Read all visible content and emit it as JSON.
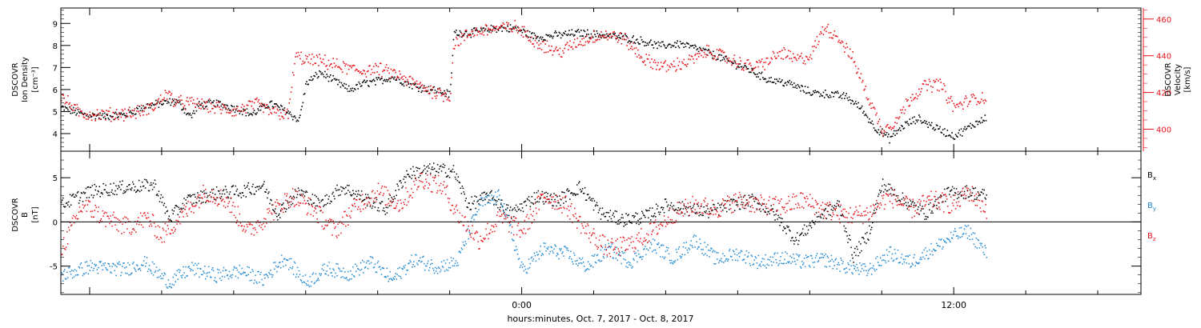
{
  "colors": {
    "density": "#000000",
    "velocity": "#e8141c",
    "bx": "#000000",
    "by": "#1e88d0",
    "bz": "#e8141c"
  },
  "chart_data": [
    {
      "type": "scatter",
      "ylabel_left": [
        "DSCOVR",
        "Ion Density",
        "[cm⁻³]"
      ],
      "ylabel_right": [
        "DSCOVR",
        "Velocity",
        "[km/s]"
      ],
      "ylim_left": [
        3.2,
        9.7
      ],
      "ylim_right": [
        388,
        466
      ],
      "yticks_left": [
        "4",
        "5",
        "6",
        "7",
        "8",
        "9"
      ],
      "yticks_right": [
        "400",
        "420",
        "440",
        "460"
      ],
      "x_range_hours": [
        -12.8,
        17.2
      ],
      "x_data_range_hours": [
        -12.8,
        12.9
      ],
      "series": [
        {
          "key": "density",
          "axis": "left",
          "knots": [
            [
              -12.8,
              5.2
            ],
            [
              -12.2,
              4.9
            ],
            [
              -11.6,
              4.8
            ],
            [
              -11.0,
              4.9
            ],
            [
              -10.4,
              5.3
            ],
            [
              -9.6,
              5.5
            ],
            [
              -9.2,
              4.8
            ],
            [
              -9.0,
              5.3
            ],
            [
              -8.5,
              5.4
            ],
            [
              -8.0,
              5.2
            ],
            [
              -7.5,
              4.9
            ],
            [
              -7.0,
              5.4
            ],
            [
              -6.5,
              5.0
            ],
            [
              -6.2,
              4.6
            ],
            [
              -6.0,
              6.3
            ],
            [
              -5.6,
              6.8
            ],
            [
              -5.2,
              6.4
            ],
            [
              -4.8,
              6.0
            ],
            [
              -4.4,
              6.3
            ],
            [
              -4.0,
              6.4
            ],
            [
              -3.6,
              6.6
            ],
            [
              -3.2,
              6.3
            ],
            [
              -2.8,
              6.1
            ],
            [
              -2.4,
              6.0
            ],
            [
              -2.0,
              5.8
            ],
            [
              -1.9,
              8.6
            ],
            [
              -1.4,
              8.6
            ],
            [
              -0.8,
              8.8
            ],
            [
              -0.2,
              8.8
            ],
            [
              0.4,
              8.4
            ],
            [
              1.0,
              8.5
            ],
            [
              1.6,
              8.6
            ],
            [
              2.2,
              8.5
            ],
            [
              2.8,
              8.4
            ],
            [
              3.4,
              8.2
            ],
            [
              3.8,
              8.0
            ],
            [
              4.4,
              8.1
            ],
            [
              5.0,
              7.8
            ],
            [
              5.6,
              7.4
            ],
            [
              6.2,
              7.0
            ],
            [
              6.8,
              6.5
            ],
            [
              7.4,
              6.3
            ],
            [
              8.0,
              5.9
            ],
            [
              8.6,
              5.8
            ],
            [
              9.0,
              5.7
            ],
            [
              9.4,
              5.2
            ],
            [
              9.8,
              4.3
            ],
            [
              10.2,
              3.8
            ],
            [
              10.6,
              4.4
            ],
            [
              11.0,
              4.7
            ],
            [
              11.6,
              4.2
            ],
            [
              12.0,
              3.9
            ],
            [
              12.4,
              4.3
            ],
            [
              12.9,
              4.8
            ]
          ],
          "noise": 0.16
        },
        {
          "key": "velocity",
          "axis": "right",
          "knots": [
            [
              -12.8,
              418
            ],
            [
              -12.3,
              409
            ],
            [
              -11.7,
              408
            ],
            [
              -11.0,
              409
            ],
            [
              -10.5,
              410
            ],
            [
              -10.2,
              413
            ],
            [
              -9.9,
              420
            ],
            [
              -9.6,
              415
            ],
            [
              -9.0,
              414
            ],
            [
              -8.5,
              412
            ],
            [
              -8.0,
              410
            ],
            [
              -7.4,
              414
            ],
            [
              -7.0,
              410
            ],
            [
              -6.5,
              408
            ],
            [
              -6.3,
              440
            ],
            [
              -6.0,
              438
            ],
            [
              -5.5,
              437
            ],
            [
              -5.0,
              434
            ],
            [
              -4.5,
              432
            ],
            [
              -4.0,
              433
            ],
            [
              -3.5,
              430
            ],
            [
              -3.0,
              425
            ],
            [
              -2.5,
              421
            ],
            [
              -2.0,
              418
            ],
            [
              -1.9,
              447
            ],
            [
              -1.4,
              453
            ],
            [
              -0.8,
              455
            ],
            [
              -0.2,
              456
            ],
            [
              0.4,
              448
            ],
            [
              1.0,
              442
            ],
            [
              1.6,
              448
            ],
            [
              2.2,
              452
            ],
            [
              2.8,
              450
            ],
            [
              3.4,
              438
            ],
            [
              4.0,
              434
            ],
            [
              4.6,
              437
            ],
            [
              5.2,
              443
            ],
            [
              5.8,
              438
            ],
            [
              6.4,
              434
            ],
            [
              6.8,
              437
            ],
            [
              7.2,
              442
            ],
            [
              7.6,
              438
            ],
            [
              8.0,
              440
            ],
            [
              8.4,
              456
            ],
            [
              8.8,
              450
            ],
            [
              9.2,
              438
            ],
            [
              9.6,
              418
            ],
            [
              10.0,
              400
            ],
            [
              10.4,
              405
            ],
            [
              10.8,
              418
            ],
            [
              11.2,
              424
            ],
            [
              11.6,
              425
            ],
            [
              12.0,
              412
            ],
            [
              12.4,
              416
            ],
            [
              12.9,
              418
            ]
          ],
          "noise": 3.2
        }
      ]
    },
    {
      "type": "scatter",
      "ylabel_left": [
        "DSCOVR",
        "B",
        "[nT]"
      ],
      "ylim": [
        -8.2,
        8.0
      ],
      "yticks_left": [
        "-5",
        "0",
        "5"
      ],
      "legend": [
        {
          "key": "bx",
          "label": "B",
          "sub": "x"
        },
        {
          "key": "by",
          "label": "B",
          "sub": "y"
        },
        {
          "key": "bz",
          "label": "B",
          "sub": "z"
        }
      ],
      "x_range_hours": [
        -12.8,
        17.2
      ],
      "x_data_range_hours": [
        -12.8,
        12.9
      ],
      "series": [
        {
          "key": "bx",
          "knots": [
            [
              -12.8,
              2.0
            ],
            [
              -12.0,
              3.5
            ],
            [
              -11.0,
              4.0
            ],
            [
              -10.2,
              4.2
            ],
            [
              -9.8,
              0.5
            ],
            [
              -9.3,
              2.5
            ],
            [
              -8.5,
              3.3
            ],
            [
              -7.8,
              3.5
            ],
            [
              -7.2,
              4.2
            ],
            [
              -6.8,
              1.0
            ],
            [
              -6.2,
              3.5
            ],
            [
              -5.6,
              2.0
            ],
            [
              -5.0,
              4.0
            ],
            [
              -4.5,
              3.0
            ],
            [
              -3.8,
              1.5
            ],
            [
              -3.2,
              5.5
            ],
            [
              -2.5,
              6.0
            ],
            [
              -1.9,
              5.8
            ],
            [
              -1.5,
              2.0
            ],
            [
              -0.9,
              3.0
            ],
            [
              -0.3,
              1.0
            ],
            [
              0.4,
              3.0
            ],
            [
              1.0,
              2.5
            ],
            [
              1.6,
              4.0
            ],
            [
              2.2,
              1.0
            ],
            [
              2.8,
              0.3
            ],
            [
              3.4,
              0.6
            ],
            [
              4.0,
              2.0
            ],
            [
              4.6,
              1.5
            ],
            [
              5.2,
              1.2
            ],
            [
              5.8,
              2.0
            ],
            [
              6.4,
              2.5
            ],
            [
              7.0,
              1.0
            ],
            [
              7.6,
              -2.0
            ],
            [
              8.2,
              0.5
            ],
            [
              8.8,
              2.0
            ],
            [
              9.2,
              -3.8
            ],
            [
              9.6,
              -1.5
            ],
            [
              10.0,
              4.3
            ],
            [
              10.6,
              2.5
            ],
            [
              11.2,
              1.0
            ],
            [
              11.8,
              3.3
            ],
            [
              12.4,
              3.5
            ],
            [
              12.9,
              3.0
            ]
          ],
          "noise": 0.75
        },
        {
          "key": "by",
          "knots": [
            [
              -12.8,
              -6.0
            ],
            [
              -12.0,
              -5.0
            ],
            [
              -11.0,
              -5.3
            ],
            [
              -10.5,
              -4.5
            ],
            [
              -9.8,
              -6.8
            ],
            [
              -9.2,
              -5.2
            ],
            [
              -8.5,
              -6.0
            ],
            [
              -7.8,
              -5.5
            ],
            [
              -7.2,
              -6.5
            ],
            [
              -6.6,
              -4.0
            ],
            [
              -6.0,
              -6.8
            ],
            [
              -5.4,
              -5.2
            ],
            [
              -4.8,
              -5.8
            ],
            [
              -4.2,
              -4.5
            ],
            [
              -3.6,
              -6.5
            ],
            [
              -3.0,
              -4.2
            ],
            [
              -2.4,
              -5.0
            ],
            [
              -1.8,
              -4.5
            ],
            [
              -1.2,
              2.0
            ],
            [
              -0.6,
              3.0
            ],
            [
              0.0,
              -5.5
            ],
            [
              0.6,
              -3.0
            ],
            [
              1.2,
              -3.5
            ],
            [
              1.8,
              -5.0
            ],
            [
              2.4,
              -3.0
            ],
            [
              3.0,
              -4.5
            ],
            [
              3.6,
              -2.5
            ],
            [
              4.2,
              -4.0
            ],
            [
              4.8,
              -2.0
            ],
            [
              5.4,
              -4.2
            ],
            [
              6.0,
              -3.5
            ],
            [
              6.6,
              -4.5
            ],
            [
              7.2,
              -4.0
            ],
            [
              7.8,
              -4.5
            ],
            [
              8.4,
              -4.2
            ],
            [
              9.0,
              -5.0
            ],
            [
              9.6,
              -5.5
            ],
            [
              10.2,
              -3.5
            ],
            [
              10.8,
              -4.5
            ],
            [
              11.4,
              -3.0
            ],
            [
              12.0,
              -1.5
            ],
            [
              12.4,
              -1.0
            ],
            [
              12.9,
              -3.6
            ]
          ],
          "noise": 0.8
        },
        {
          "key": "bz",
          "knots": [
            [
              -12.8,
              -3.0
            ],
            [
              -12.2,
              2.0
            ],
            [
              -11.6,
              0.5
            ],
            [
              -11.0,
              -0.5
            ],
            [
              -10.4,
              0.5
            ],
            [
              -10.0,
              -1.5
            ],
            [
              -9.4,
              1.0
            ],
            [
              -8.8,
              3.5
            ],
            [
              -8.2,
              2.5
            ],
            [
              -7.6,
              -1.0
            ],
            [
              -7.0,
              1.0
            ],
            [
              -6.4,
              3.0
            ],
            [
              -5.8,
              1.5
            ],
            [
              -5.2,
              -1.0
            ],
            [
              -4.6,
              2.0
            ],
            [
              -4.0,
              3.5
            ],
            [
              -3.4,
              2.0
            ],
            [
              -2.8,
              5.0
            ],
            [
              -2.2,
              4.0
            ],
            [
              -1.8,
              1.0
            ],
            [
              -1.2,
              -2.0
            ],
            [
              -0.6,
              0.5
            ],
            [
              0.0,
              -1.0
            ],
            [
              0.6,
              3.0
            ],
            [
              1.2,
              2.0
            ],
            [
              1.8,
              -1.0
            ],
            [
              2.4,
              -3.0
            ],
            [
              3.0,
              -2.5
            ],
            [
              3.6,
              -1.0
            ],
            [
              4.2,
              1.0
            ],
            [
              4.8,
              2.0
            ],
            [
              5.4,
              1.5
            ],
            [
              6.0,
              2.5
            ],
            [
              6.6,
              2.0
            ],
            [
              7.2,
              1.8
            ],
            [
              7.8,
              2.5
            ],
            [
              8.4,
              1.5
            ],
            [
              9.0,
              0.8
            ],
            [
              9.6,
              1.0
            ],
            [
              10.2,
              3.0
            ],
            [
              10.8,
              1.5
            ],
            [
              11.4,
              2.5
            ],
            [
              12.0,
              2.0
            ],
            [
              12.4,
              3.5
            ],
            [
              12.9,
              1.5
            ]
          ],
          "noise": 1.1
        }
      ]
    }
  ],
  "x_axis": {
    "label": "hours:minutes, Oct.  7, 2017 - Oct.  8, 2017",
    "tick_labels": [
      {
        "hour": 0,
        "label": "0:00"
      },
      {
        "hour": 12,
        "label": "12:00"
      }
    ]
  }
}
